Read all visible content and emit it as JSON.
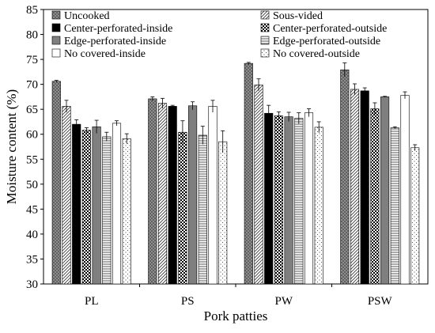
{
  "chart_data": {
    "type": "bar",
    "xlabel": "Pork patties",
    "ylabel": "Moisture content (%)",
    "ylim": [
      30,
      85
    ],
    "yticks": [
      30,
      35,
      40,
      45,
      50,
      55,
      60,
      65,
      70,
      75,
      80,
      85
    ],
    "categories": [
      "PL",
      "PS",
      "PW",
      "PSW"
    ],
    "legend_position": "top-left, inside plot, two columns",
    "series": [
      {
        "name": "Uncooked",
        "values": [
          70.6,
          67.1,
          74.2,
          72.9
        ],
        "errors": [
          0.2,
          0.4,
          0.2,
          1.4
        ],
        "pattern": "crosshatch-gray"
      },
      {
        "name": "Sous-vided",
        "values": [
          65.6,
          66.2,
          69.9,
          69.0
        ],
        "errors": [
          1.2,
          1.0,
          1.2,
          1.1
        ],
        "pattern": "diagonal-hatch"
      },
      {
        "name": "Center-perforated-inside",
        "values": [
          62.0,
          65.6,
          64.2,
          68.7
        ],
        "errors": [
          0.9,
          0.2,
          1.6,
          0.6
        ],
        "pattern": "solid-black"
      },
      {
        "name": "Center-perforated-outside",
        "values": [
          60.8,
          60.4,
          63.7,
          65.1
        ],
        "errors": [
          0.5,
          2.3,
          0.8,
          1.2
        ],
        "pattern": "checker"
      },
      {
        "name": "Edge-perforated-inside",
        "values": [
          61.5,
          65.7,
          63.5,
          67.5
        ],
        "errors": [
          1.3,
          0.8,
          0.9,
          0.1
        ],
        "pattern": "solid-gray"
      },
      {
        "name": "Edge-perforated-outside",
        "values": [
          59.5,
          59.8,
          63.2,
          61.3
        ],
        "errors": [
          0.9,
          1.8,
          1.1,
          0.2
        ],
        "pattern": "horizontal-lines"
      },
      {
        "name": "No covered-inside",
        "values": [
          62.2,
          65.6,
          64.3,
          67.8
        ],
        "errors": [
          0.5,
          1.2,
          0.8,
          0.7
        ],
        "pattern": "white"
      },
      {
        "name": "No covered-outside",
        "values": [
          59.1,
          58.5,
          61.4,
          57.3
        ],
        "errors": [
          1.0,
          2.2,
          1.1,
          0.6
        ],
        "pattern": "dots"
      }
    ]
  }
}
